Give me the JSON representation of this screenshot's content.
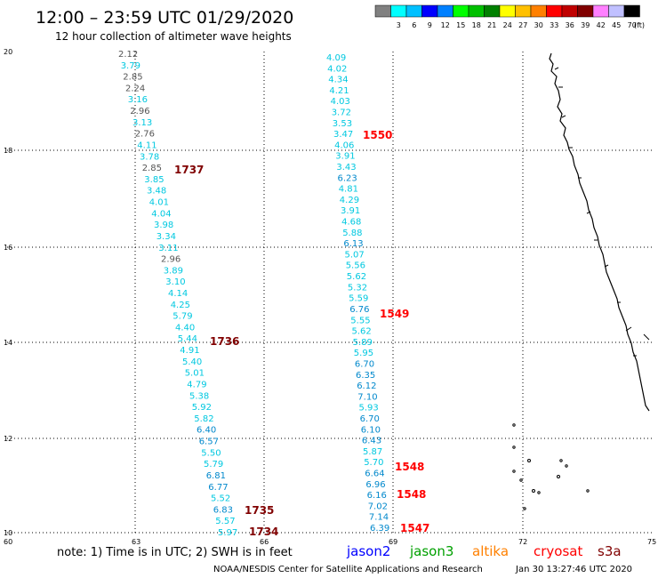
{
  "header": {
    "title": "12:00 – 23:59 UTC 01/29/2020",
    "subtitle": "12 hour collection of altimeter wave heights"
  },
  "color_scale": {
    "unit": "(ft)",
    "bins": [
      {
        "label": "",
        "color": "#808080"
      },
      {
        "label": "3",
        "color": "#00ffff"
      },
      {
        "label": "6",
        "color": "#00c0ff"
      },
      {
        "label": "9",
        "color": "#0000ff"
      },
      {
        "label": "12",
        "color": "#0080ff"
      },
      {
        "label": "15",
        "color": "#00ff00"
      },
      {
        "label": "18",
        "color": "#00c000"
      },
      {
        "label": "21",
        "color": "#008000"
      },
      {
        "label": "24",
        "color": "#ffff00"
      },
      {
        "label": "27",
        "color": "#ffc000"
      },
      {
        "label": "30",
        "color": "#ff8000"
      },
      {
        "label": "33",
        "color": "#ff0000"
      },
      {
        "label": "36",
        "color": "#c00000"
      },
      {
        "label": "39",
        "color": "#800000"
      },
      {
        "label": "42",
        "color": "#ff80ff"
      },
      {
        "label": "45",
        "color": "#c0c0ff"
      },
      {
        "label": "70",
        "color": "#000000"
      }
    ]
  },
  "axes": {
    "lon_ticks": [
      "60",
      "63",
      "66",
      "69",
      "72",
      "75"
    ],
    "lat_ticks": [
      "10",
      "12",
      "14",
      "16",
      "18",
      "20"
    ]
  },
  "colors": {
    "obs_cyan": "#00c8e0",
    "obs_gray": "#555555",
    "obs_teal": "#0088cc",
    "time_dark": "#800000",
    "time_red": "#ff0000"
  },
  "track_left": {
    "values": [
      "2.12",
      "3.79",
      "2.85",
      "2.24",
      "3.16",
      "2.96",
      "3.13",
      "2.76",
      "4.11",
      "3.78",
      "2.85",
      "3.85",
      "3.48",
      "4.01",
      "4.04",
      "3.98",
      "3.34",
      "3.11",
      "2.96",
      "3.89",
      "3.10",
      "4.14",
      "4.25",
      "5.79",
      "4.40",
      "5.44",
      "4.91",
      "5.40",
      "5.01",
      "4.79",
      "5.38",
      "5.92",
      "5.82",
      "6.40",
      "6.57",
      "5.50",
      "5.79",
      "6.81",
      "6.77",
      "5.52",
      "6.83",
      "5.57",
      "5.97"
    ],
    "times": [
      "1737",
      "1736",
      "1735",
      "1734"
    ]
  },
  "track_right": {
    "values": [
      "4.09",
      "4.02",
      "4.34",
      "4.21",
      "4.03",
      "3.72",
      "3.53",
      "3.47",
      "4.06",
      "3.91",
      "3.43",
      "6.23",
      "4.81",
      "4.29",
      "3.91",
      "4.68",
      "5.88",
      "6.13",
      "5.07",
      "5.56",
      "5.62",
      "5.32",
      "5.59",
      "6.76",
      "5.55",
      "5.62",
      "5.89",
      "5.95",
      "6.70",
      "6.35",
      "6.12",
      "7.10",
      "5.93",
      "6.70",
      "6.10",
      "6.43",
      "5.87",
      "5.70",
      "6.64",
      "6.96",
      "6.16",
      "7.02",
      "7.14",
      "6.39"
    ],
    "times": [
      "1550",
      "1549",
      "1548",
      "1548",
      "1547"
    ]
  },
  "footer": {
    "note": "note: 1) Time is in UTC; 2) SWH is in feet",
    "legend": [
      {
        "label": "jason2",
        "color": "#0000ff"
      },
      {
        "label": "jason3",
        "color": "#00a000"
      },
      {
        "label": "altika",
        "color": "#ff8000"
      },
      {
        "label": "cryosat",
        "color": "#ff0000"
      },
      {
        "label": "s3a",
        "color": "#800000"
      }
    ],
    "credit": "NOAA/NESDIS Center for Satellite Applications and Research",
    "timestamp": "Jan 30 13:27:46 UTC 2020"
  }
}
